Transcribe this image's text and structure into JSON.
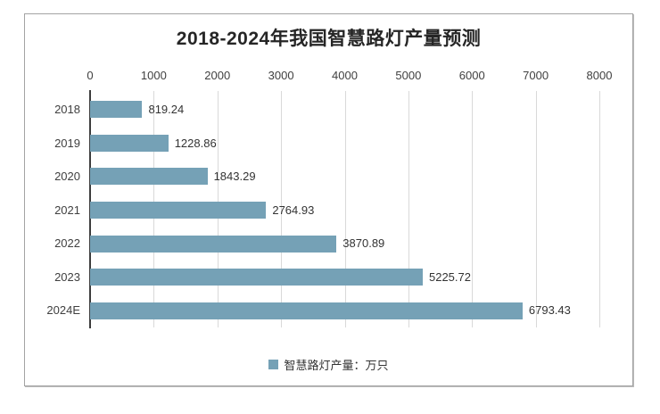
{
  "chart_data": {
    "type": "bar",
    "orientation": "horizontal",
    "title": "2018-2024年我国智慧路灯产量预测",
    "categories": [
      "2018",
      "2019",
      "2020",
      "2021",
      "2022",
      "2023",
      "2024E"
    ],
    "values": [
      819.24,
      1228.86,
      1843.29,
      2764.93,
      3870.89,
      5225.72,
      6793.43
    ],
    "value_labels": [
      "819.24",
      "1228.86",
      "1843.29",
      "2764.93",
      "3870.89",
      "5225.72",
      "6793.43"
    ],
    "xlabel": "",
    "ylabel": "",
    "xlim": [
      0,
      8000
    ],
    "x_ticks": [
      0,
      1000,
      2000,
      3000,
      4000,
      5000,
      6000,
      7000,
      8000
    ],
    "x_axis_position": "top",
    "grid": true,
    "legend": {
      "label": "智慧路灯产量：万只",
      "position": "bottom"
    },
    "colors": {
      "bar": "#75A1B6",
      "gridline": "#D9D9D9",
      "axis_line": "#3D3D3D",
      "text": "#404040",
      "title": "#262626",
      "frame_border": "#A3A3A3"
    }
  }
}
